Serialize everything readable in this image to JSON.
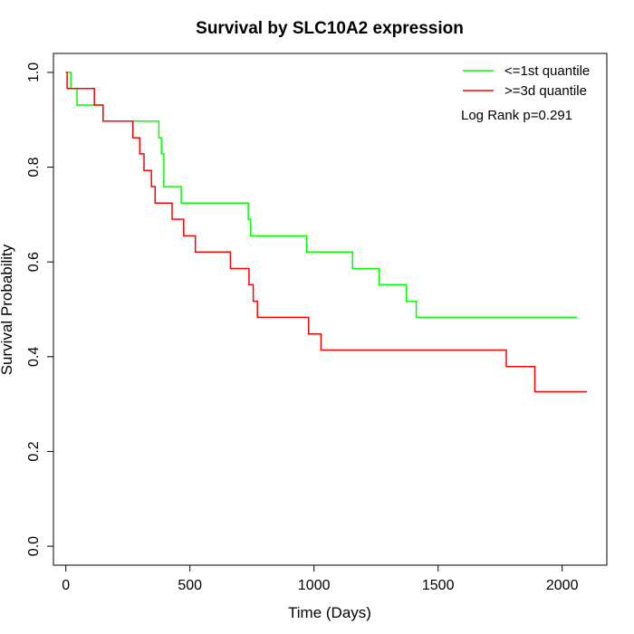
{
  "chart_data": {
    "type": "line",
    "title": "Survival by SLC10A2 expression",
    "xlabel": "Time (Days)",
    "ylabel": "Survival Probability",
    "xlim": [
      -50,
      2180
    ],
    "ylim": [
      -0.04,
      1.04
    ],
    "xticks": [
      "0",
      "500",
      "1000",
      "1500",
      "2000"
    ],
    "xtick_values": [
      0,
      500,
      1000,
      1500,
      2000
    ],
    "yticks": [
      "0.0",
      "0.2",
      "0.4",
      "0.6",
      "0.8",
      "1.0"
    ],
    "ytick_values": [
      0.0,
      0.2,
      0.4,
      0.6,
      0.8,
      1.0
    ],
    "grid": false,
    "legend_position": "top-right",
    "annotation": "Log Rank p=0.291",
    "series": [
      {
        "name": "<=1st quantile",
        "color": "#00ff00",
        "step_points": [
          [
            0,
            1.0
          ],
          [
            20,
            1.0
          ],
          [
            20,
            0.966
          ],
          [
            45,
            0.966
          ],
          [
            45,
            0.931
          ],
          [
            150,
            0.931
          ],
          [
            150,
            0.897
          ],
          [
            375,
            0.897
          ],
          [
            375,
            0.862
          ],
          [
            385,
            0.862
          ],
          [
            385,
            0.828
          ],
          [
            395,
            0.828
          ],
          [
            395,
            0.759
          ],
          [
            465,
            0.759
          ],
          [
            465,
            0.724
          ],
          [
            735,
            0.724
          ],
          [
            735,
            0.69
          ],
          [
            745,
            0.69
          ],
          [
            745,
            0.655
          ],
          [
            970,
            0.655
          ],
          [
            970,
            0.621
          ],
          [
            1155,
            0.621
          ],
          [
            1155,
            0.586
          ],
          [
            1262,
            0.586
          ],
          [
            1262,
            0.552
          ],
          [
            1372,
            0.552
          ],
          [
            1372,
            0.517
          ],
          [
            1412,
            0.517
          ],
          [
            1412,
            0.483
          ],
          [
            2060,
            0.483
          ]
        ]
      },
      {
        "name": ">=3d quantile",
        "color": "#ff0000",
        "step_points": [
          [
            0,
            1.0
          ],
          [
            5,
            1.0
          ],
          [
            5,
            0.966
          ],
          [
            115,
            0.966
          ],
          [
            115,
            0.931
          ],
          [
            150,
            0.931
          ],
          [
            150,
            0.897
          ],
          [
            270,
            0.897
          ],
          [
            270,
            0.862
          ],
          [
            298,
            0.862
          ],
          [
            298,
            0.828
          ],
          [
            315,
            0.828
          ],
          [
            315,
            0.793
          ],
          [
            345,
            0.793
          ],
          [
            345,
            0.759
          ],
          [
            360,
            0.759
          ],
          [
            360,
            0.724
          ],
          [
            428,
            0.724
          ],
          [
            428,
            0.69
          ],
          [
            475,
            0.69
          ],
          [
            475,
            0.655
          ],
          [
            522,
            0.655
          ],
          [
            522,
            0.621
          ],
          [
            663,
            0.621
          ],
          [
            663,
            0.586
          ],
          [
            738,
            0.586
          ],
          [
            738,
            0.552
          ],
          [
            755,
            0.552
          ],
          [
            755,
            0.517
          ],
          [
            772,
            0.517
          ],
          [
            772,
            0.483
          ],
          [
            978,
            0.483
          ],
          [
            978,
            0.448
          ],
          [
            1028,
            0.448
          ],
          [
            1028,
            0.414
          ],
          [
            1775,
            0.414
          ],
          [
            1775,
            0.379
          ],
          [
            1890,
            0.379
          ],
          [
            1890,
            0.326
          ],
          [
            2100,
            0.326
          ]
        ]
      }
    ]
  }
}
